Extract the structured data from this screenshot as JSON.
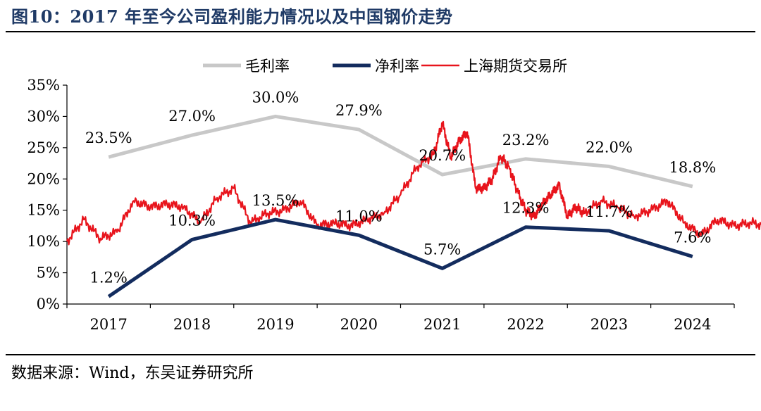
{
  "title": "图10：2017 年至今公司盈利能力情况以及中国钢价走势",
  "source": "数据来源：Wind，东吴证券研究所",
  "chart_data": {
    "type": "line",
    "categories": [
      "2017",
      "2018",
      "2019",
      "2020",
      "2021",
      "2022",
      "2023",
      "2024"
    ],
    "ylim": [
      0,
      35
    ],
    "yticks": [
      0,
      5,
      10,
      15,
      20,
      25,
      30,
      35
    ],
    "ytick_labels": [
      "0%",
      "5%",
      "10%",
      "15%",
      "20%",
      "25%",
      "30%",
      "35%"
    ],
    "grid": false,
    "legend_position": "top",
    "series": [
      {
        "name": "毛利率",
        "color": "#c8c8c8",
        "values": [
          23.5,
          27.0,
          30.0,
          27.9,
          20.7,
          23.2,
          22.0,
          18.8
        ],
        "labels": [
          "23.5%",
          "27.0%",
          "30.0%",
          "27.9%",
          "20.7%",
          "23.2%",
          "22.0%",
          "18.8%"
        ]
      },
      {
        "name": "净利率",
        "color": "#132c5e",
        "values": [
          1.2,
          10.3,
          13.5,
          11.0,
          5.7,
          12.3,
          11.7,
          7.6
        ],
        "labels": [
          "1.2%",
          "10.3%",
          "13.5%",
          "11.0%",
          "5.7%",
          "12.3%",
          "11.7%",
          "7.6%"
        ]
      },
      {
        "name": "上海期货交易所",
        "color": "#e8141c",
        "x": [
          2016.5,
          2016.7,
          2016.9,
          2017.1,
          2017.3,
          2017.5,
          2017.7,
          2017.9,
          2018.1,
          2018.3,
          2018.5,
          2018.7,
          2018.9,
          2019.1,
          2019.3,
          2019.5,
          2019.7,
          2019.9,
          2020.1,
          2020.3,
          2020.5,
          2020.7,
          2020.9,
          2021.0,
          2021.1,
          2021.2,
          2021.3,
          2021.4,
          2021.5,
          2021.6,
          2021.7,
          2021.8,
          2021.9,
          2022.0,
          2022.1,
          2022.2,
          2022.3,
          2022.4,
          2022.5,
          2022.6,
          2022.7,
          2022.9,
          2023.1,
          2023.3,
          2023.5,
          2023.7,
          2023.9,
          2024.1,
          2024.3,
          2024.5,
          2024.7,
          2024.9
        ],
        "values": [
          10.0,
          13.5,
          10.5,
          11.5,
          16.5,
          15.5,
          16.0,
          15.5,
          13.0,
          17.0,
          18.5,
          13.0,
          14.5,
          15.0,
          16.5,
          12.5,
          13.0,
          12.5,
          13.5,
          14.5,
          17.5,
          22.0,
          24.0,
          29.0,
          23.5,
          26.0,
          27.5,
          18.5,
          18.5,
          20.0,
          23.5,
          22.0,
          18.0,
          15.0,
          14.0,
          16.0,
          17.5,
          19.0,
          14.0,
          15.5,
          14.5,
          16.5,
          15.5,
          14.0,
          15.0,
          16.5,
          13.0,
          11.0,
          13.5,
          12.5,
          13.0,
          12.5
        ]
      }
    ]
  }
}
